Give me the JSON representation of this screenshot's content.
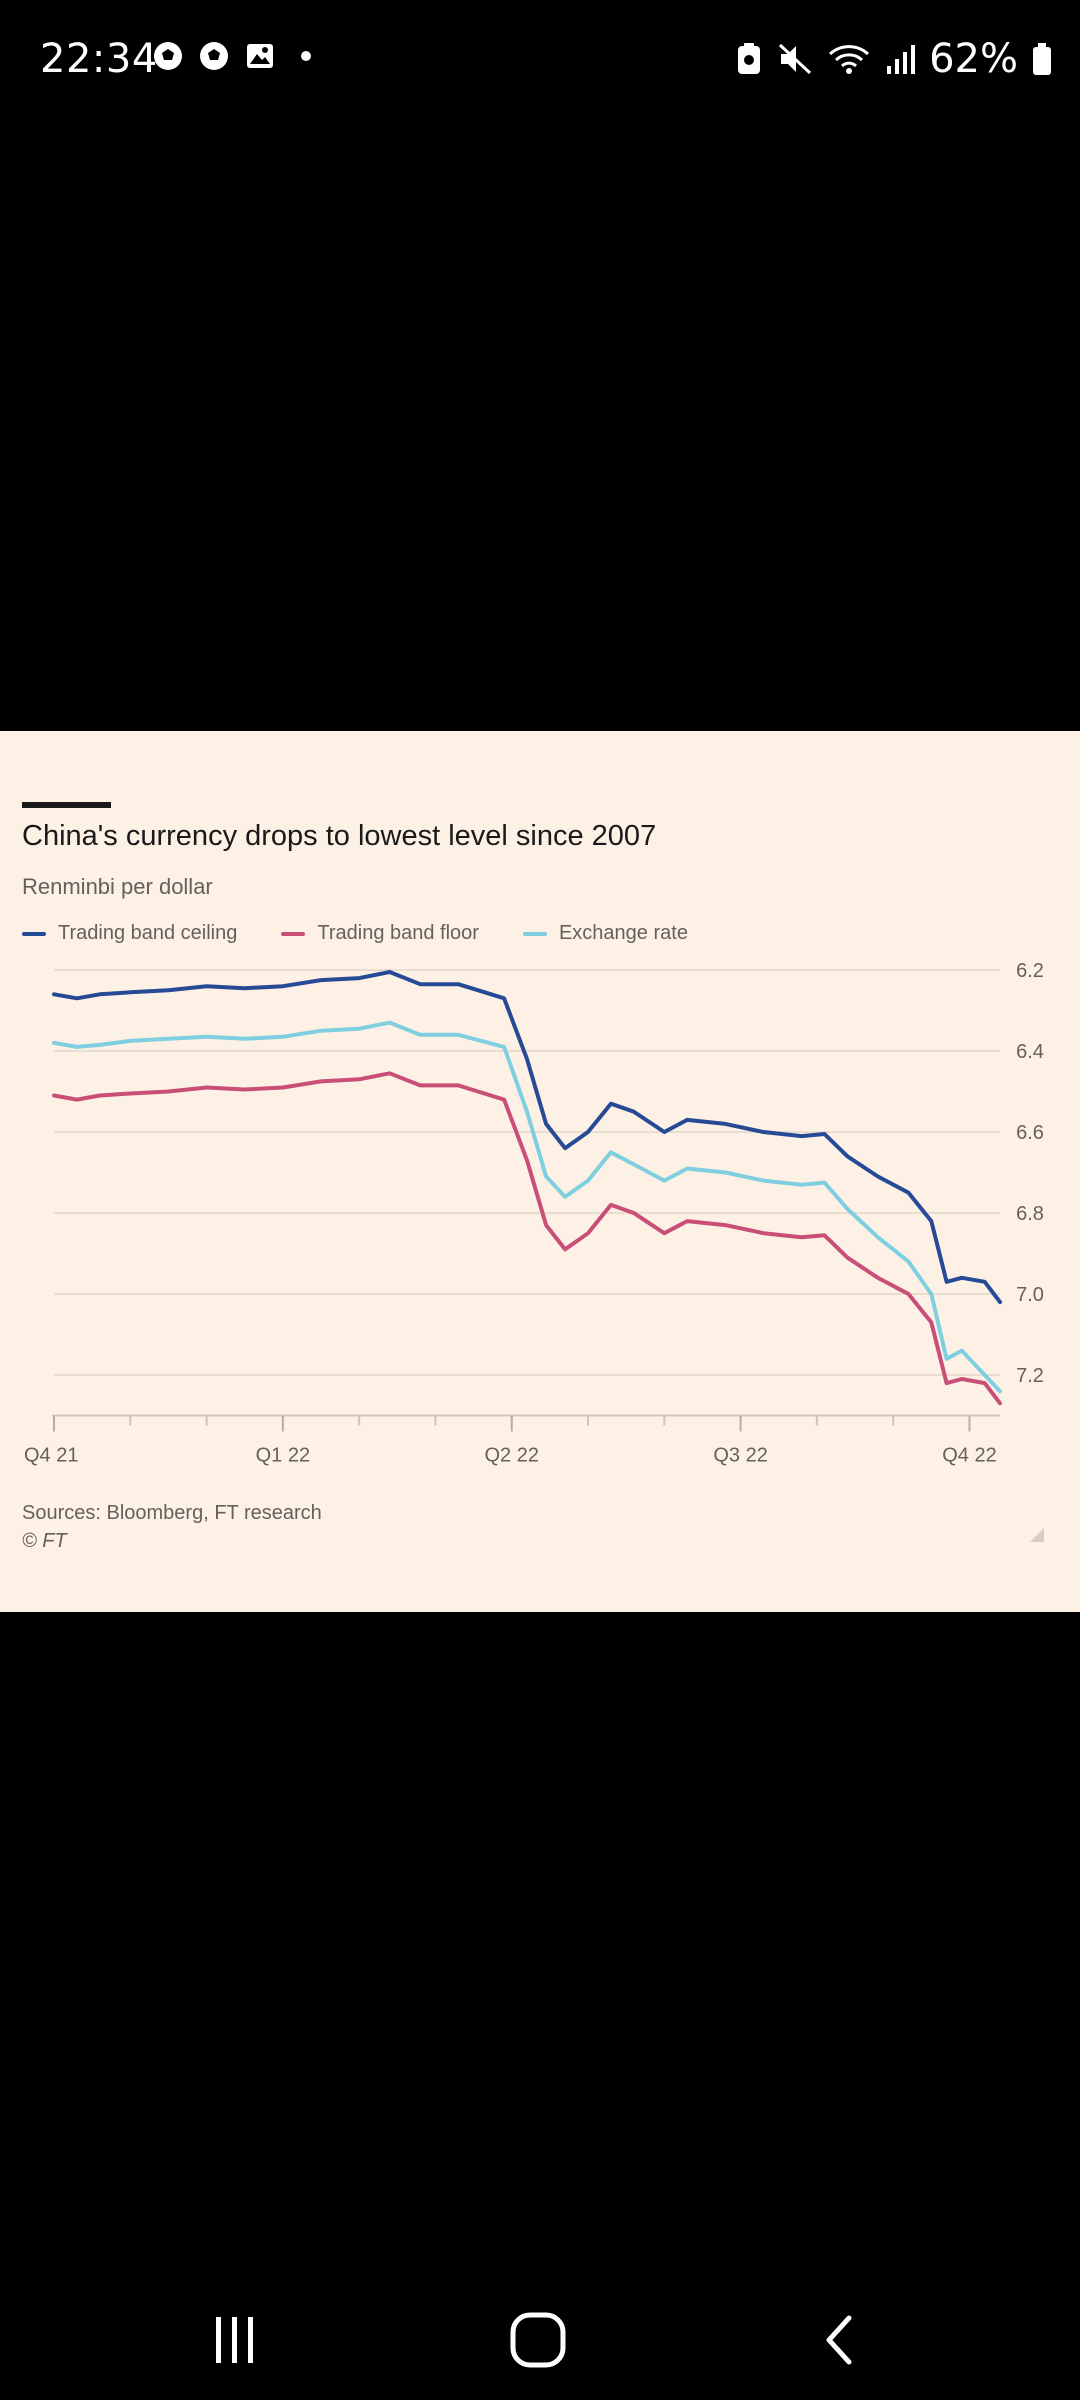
{
  "status_bar": {
    "time": "22:34",
    "notification_icons": [
      "soccer-ball-icon",
      "soccer-ball-icon",
      "image-icon",
      "dot-icon"
    ],
    "system_icons": [
      "nfc-icon",
      "mute-icon",
      "wifi-icon",
      "signal-icon"
    ],
    "battery_percent": "62%"
  },
  "navigation_bar": {
    "buttons": [
      "recent-apps-icon",
      "home-icon",
      "back-icon"
    ]
  },
  "chart_data": {
    "type": "line",
    "title": "China's currency drops to lowest level since 2007",
    "subtitle": "Renminbi per dollar",
    "y_axis": {
      "ticks": [
        "6.2",
        "6.4",
        "6.6",
        "6.8",
        "7.0",
        "7.2"
      ],
      "range": [
        6.2,
        7.3
      ],
      "inverted": true,
      "position": "right",
      "grid": true
    },
    "x_axis": {
      "tick_labels": [
        "Q4 21",
        "Q1 22",
        "Q2 22",
        "Q3 22",
        "Q4 22"
      ],
      "range": [
        0,
        12.4
      ]
    },
    "legend_position": "top",
    "series": [
      {
        "name": "Trading band ceiling",
        "color": "#264a95",
        "points": [
          [
            0,
            6.26
          ],
          [
            0.3,
            6.27
          ],
          [
            0.6,
            6.26
          ],
          [
            1,
            6.255
          ],
          [
            1.5,
            6.25
          ],
          [
            2,
            6.24
          ],
          [
            2.5,
            6.245
          ],
          [
            3,
            6.24
          ],
          [
            3.5,
            6.225
          ],
          [
            4,
            6.22
          ],
          [
            4.4,
            6.205
          ],
          [
            4.8,
            6.235
          ],
          [
            5.3,
            6.235
          ],
          [
            5.9,
            6.27
          ],
          [
            6.2,
            6.42
          ],
          [
            6.45,
            6.58
          ],
          [
            6.7,
            6.64
          ],
          [
            7.0,
            6.6
          ],
          [
            7.3,
            6.53
          ],
          [
            7.6,
            6.55
          ],
          [
            8.0,
            6.6
          ],
          [
            8.3,
            6.57
          ],
          [
            8.8,
            6.58
          ],
          [
            9.3,
            6.6
          ],
          [
            9.8,
            6.61
          ],
          [
            10.1,
            6.605
          ],
          [
            10.4,
            6.66
          ],
          [
            10.8,
            6.71
          ],
          [
            11.2,
            6.75
          ],
          [
            11.5,
            6.82
          ],
          [
            11.7,
            6.97
          ],
          [
            11.9,
            6.96
          ],
          [
            12.2,
            6.97
          ],
          [
            12.4,
            7.02
          ]
        ]
      },
      {
        "name": "Trading band floor",
        "color": "#c94f78",
        "points": [
          [
            0,
            6.51
          ],
          [
            0.3,
            6.52
          ],
          [
            0.6,
            6.51
          ],
          [
            1,
            6.505
          ],
          [
            1.5,
            6.5
          ],
          [
            2,
            6.49
          ],
          [
            2.5,
            6.495
          ],
          [
            3,
            6.49
          ],
          [
            3.5,
            6.475
          ],
          [
            4,
            6.47
          ],
          [
            4.4,
            6.455
          ],
          [
            4.8,
            6.485
          ],
          [
            5.3,
            6.485
          ],
          [
            5.9,
            6.52
          ],
          [
            6.2,
            6.67
          ],
          [
            6.45,
            6.83
          ],
          [
            6.7,
            6.89
          ],
          [
            7.0,
            6.85
          ],
          [
            7.3,
            6.78
          ],
          [
            7.6,
            6.8
          ],
          [
            8.0,
            6.85
          ],
          [
            8.3,
            6.82
          ],
          [
            8.8,
            6.83
          ],
          [
            9.3,
            6.85
          ],
          [
            9.8,
            6.86
          ],
          [
            10.1,
            6.855
          ],
          [
            10.4,
            6.91
          ],
          [
            10.8,
            6.96
          ],
          [
            11.2,
            7.0
          ],
          [
            11.5,
            7.07
          ],
          [
            11.7,
            7.22
          ],
          [
            11.9,
            7.21
          ],
          [
            12.2,
            7.22
          ],
          [
            12.4,
            7.27
          ]
        ]
      },
      {
        "name": "Exchange rate",
        "color": "#7fcfe0",
        "points": [
          [
            0,
            6.38
          ],
          [
            0.3,
            6.39
          ],
          [
            0.6,
            6.385
          ],
          [
            1,
            6.375
          ],
          [
            1.5,
            6.37
          ],
          [
            2,
            6.365
          ],
          [
            2.5,
            6.37
          ],
          [
            3,
            6.365
          ],
          [
            3.5,
            6.35
          ],
          [
            4,
            6.345
          ],
          [
            4.4,
            6.33
          ],
          [
            4.8,
            6.36
          ],
          [
            5.3,
            6.36
          ],
          [
            5.9,
            6.39
          ],
          [
            6.2,
            6.55
          ],
          [
            6.45,
            6.71
          ],
          [
            6.7,
            6.76
          ],
          [
            7.0,
            6.72
          ],
          [
            7.3,
            6.65
          ],
          [
            7.6,
            6.68
          ],
          [
            8.0,
            6.72
          ],
          [
            8.3,
            6.69
          ],
          [
            8.8,
            6.7
          ],
          [
            9.3,
            6.72
          ],
          [
            9.8,
            6.73
          ],
          [
            10.1,
            6.725
          ],
          [
            10.4,
            6.79
          ],
          [
            10.8,
            6.86
          ],
          [
            11.2,
            6.92
          ],
          [
            11.5,
            7.0
          ],
          [
            11.7,
            7.16
          ],
          [
            11.9,
            7.14
          ],
          [
            12.2,
            7.2
          ],
          [
            12.4,
            7.24
          ]
        ]
      }
    ],
    "source": "Sources: Bloomberg, FT research",
    "copyright": "© FT"
  }
}
